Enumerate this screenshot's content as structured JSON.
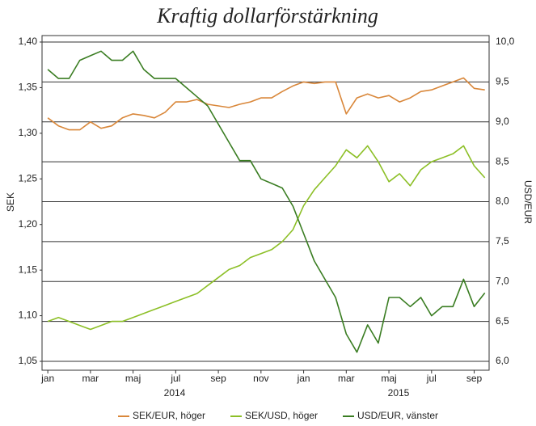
{
  "chart_data": {
    "type": "line",
    "title": "Kraftig dollarförstärkning",
    "y_label": "SEK",
    "y2_label": "USD/EUR",
    "year_labels": [
      "2014",
      "2015"
    ],
    "x": [
      0,
      0.5,
      1,
      1.5,
      2,
      2.5,
      3,
      3.5,
      4,
      4.5,
      5,
      5.5,
      6,
      6.5,
      7,
      7.5,
      8,
      8.5,
      9,
      9.5,
      10,
      10.5,
      11,
      11.5,
      12,
      12.5,
      13,
      13.5,
      14,
      14.5,
      15,
      15.5,
      16,
      16.5,
      17,
      17.5,
      18,
      18.5,
      19,
      19.5,
      20,
      20.5
    ],
    "xlim": [
      -0.27,
      20.7
    ],
    "xticks": [
      {
        "value": 0,
        "label": "jan"
      },
      {
        "value": 2,
        "label": "mar"
      },
      {
        "value": 4,
        "label": "maj"
      },
      {
        "value": 6,
        "label": "jul"
      },
      {
        "value": 8,
        "label": "sep"
      },
      {
        "value": 10,
        "label": "nov"
      },
      {
        "value": 12,
        "label": "jan"
      },
      {
        "value": 14,
        "label": "mar"
      },
      {
        "value": 16,
        "label": "maj"
      },
      {
        "value": 18,
        "label": "jul"
      },
      {
        "value": 20,
        "label": "sep"
      }
    ],
    "ylim": [
      1.05,
      1.4
    ],
    "yticks": [
      {
        "value": 1.05,
        "label": "1,05"
      },
      {
        "value": 1.1,
        "label": "1,10"
      },
      {
        "value": 1.15,
        "label": "1,15"
      },
      {
        "value": 1.2,
        "label": "1,20"
      },
      {
        "value": 1.25,
        "label": "1,25"
      },
      {
        "value": 1.3,
        "label": "1,30"
      },
      {
        "value": 1.35,
        "label": "1,35"
      },
      {
        "value": 1.4,
        "label": "1,40"
      }
    ],
    "y2lim": [
      6,
      10
    ],
    "y2ticks": [
      {
        "value": 6,
        "label": "6,0"
      },
      {
        "value": 6.5,
        "label": "6,5"
      },
      {
        "value": 7,
        "label": "7,0"
      },
      {
        "value": 7.5,
        "label": "7,5"
      },
      {
        "value": 8,
        "label": "8,0"
      },
      {
        "value": 8.5,
        "label": "8,5"
      },
      {
        "value": 9,
        "label": "9,0"
      },
      {
        "value": 9.5,
        "label": "9,5"
      },
      {
        "value": 10,
        "label": "10,0"
      }
    ],
    "grid": true,
    "legend": "bottom",
    "series": [
      {
        "name": "SEK/EUR, höger",
        "color": "#d9873a",
        "axis": "y2",
        "values": [
          9.05,
          8.95,
          8.9,
          8.9,
          9.0,
          8.92,
          8.95,
          9.05,
          9.1,
          9.08,
          9.05,
          9.12,
          9.25,
          9.25,
          9.28,
          9.22,
          9.2,
          9.18,
          9.22,
          9.25,
          9.3,
          9.3,
          9.38,
          9.45,
          9.5,
          9.48,
          9.5,
          9.5,
          9.1,
          9.3,
          9.35,
          9.3,
          9.33,
          9.25,
          9.3,
          9.38,
          9.4,
          9.45,
          9.5,
          9.55,
          9.42,
          9.4
        ]
      },
      {
        "name": "SEK/USD, höger",
        "color": "#8cbf26",
        "axis": "y2",
        "values": [
          6.5,
          6.55,
          6.5,
          6.45,
          6.4,
          6.45,
          6.5,
          6.5,
          6.55,
          6.6,
          6.65,
          6.7,
          6.75,
          6.8,
          6.85,
          6.95,
          7.05,
          7.15,
          7.2,
          7.3,
          7.35,
          7.4,
          7.5,
          7.65,
          7.95,
          8.15,
          8.3,
          8.45,
          8.65,
          8.55,
          8.7,
          8.5,
          8.25,
          8.35,
          8.2,
          8.4,
          8.5,
          8.55,
          8.6,
          8.7,
          8.45,
          8.3
        ]
      },
      {
        "name": "USD/EUR, vänster",
        "color": "#3a7d22",
        "values": [
          1.37,
          1.36,
          1.36,
          1.38,
          1.385,
          1.39,
          1.38,
          1.38,
          1.39,
          1.37,
          1.36,
          1.36,
          1.36,
          1.35,
          1.34,
          1.33,
          1.31,
          1.29,
          1.27,
          1.27,
          1.25,
          1.245,
          1.24,
          1.22,
          1.19,
          1.16,
          1.14,
          1.12,
          1.08,
          1.06,
          1.09,
          1.07,
          1.12,
          1.12,
          1.11,
          1.12,
          1.1,
          1.11,
          1.11,
          1.14,
          1.11,
          1.125
        ]
      }
    ]
  }
}
